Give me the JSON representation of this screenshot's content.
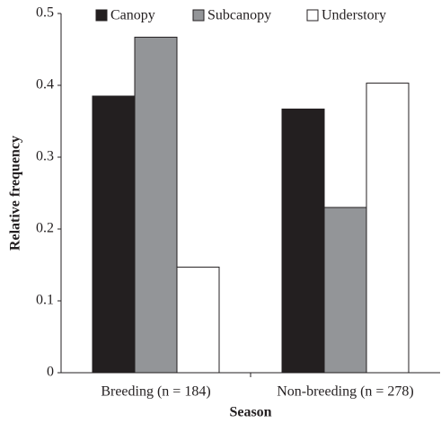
{
  "chart_data": {
    "type": "bar",
    "x_label": "Season",
    "y_label": "Relative frequency",
    "categories": [
      "Breeding (n = 184)",
      "Non-breeding (n = 278)"
    ],
    "series": [
      {
        "name": "Canopy",
        "color": "#231f20",
        "values": [
          0.385,
          0.367
        ]
      },
      {
        "name": "Subcanopy",
        "color": "#939598",
        "values": [
          0.467,
          0.23
        ]
      },
      {
        "name": "Understory",
        "color": "#ffffff",
        "values": [
          0.147,
          0.403
        ]
      }
    ],
    "ylim": [
      0,
      0.5
    ],
    "yticks": [
      0,
      0.1,
      0.2,
      0.3,
      0.4,
      0.5
    ],
    "legend": "top",
    "grid": false
  }
}
